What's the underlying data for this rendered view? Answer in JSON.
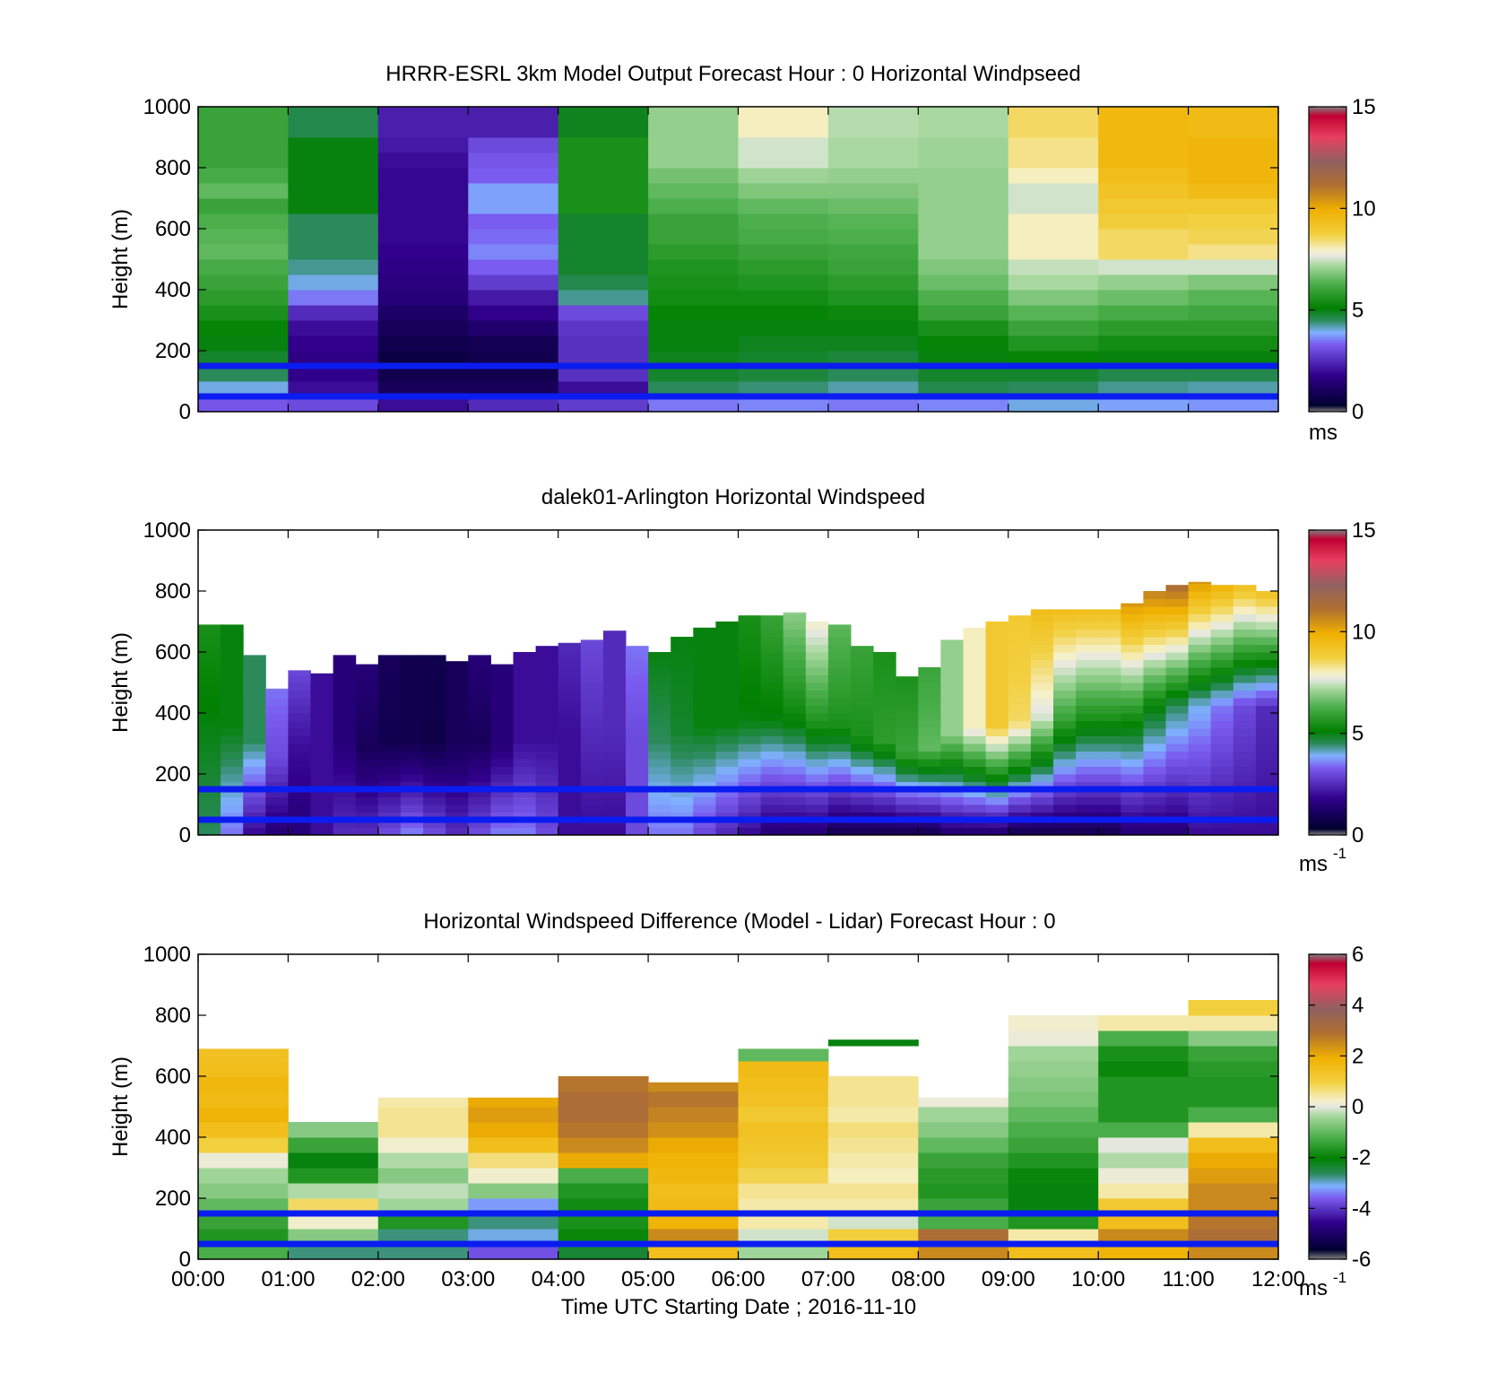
{
  "chart_data": [
    {
      "type": "heatmap",
      "title": "HRRR-ESRL 3km Model Output   Forecast Hour : 0 Horizontal Windpseed",
      "ylabel": "Height (m)",
      "xlabel": "",
      "ylim": [
        0,
        1000
      ],
      "yticks": [
        "0",
        "200",
        "400",
        "600",
        "800",
        "1000"
      ],
      "colorbar": {
        "ticks": [
          "0",
          "5",
          "10",
          "15"
        ],
        "range": [
          0,
          15
        ],
        "unit": "ms"
      },
      "x_ticks": [],
      "time_bins": [
        "00:00",
        "01:00",
        "02:00",
        "03:00",
        "04:00",
        "05:00",
        "06:00",
        "07:00",
        "08:00",
        "09:00",
        "10:00",
        "11:00"
      ],
      "reference_lines_m": [
        50,
        150
      ],
      "height_levels_m": [
        25,
        75,
        125,
        175,
        225,
        275,
        325,
        375,
        425,
        475,
        525,
        575,
        625,
        675,
        725,
        775,
        825,
        875,
        925,
        975
      ],
      "values": [
        [
          3.2,
          4.0,
          4.5,
          4.8,
          5.0,
          5.2,
          5.5,
          5.8,
          6.0,
          6.2,
          6.5,
          6.4,
          6.3,
          6.0,
          6.5,
          6.2,
          6.0,
          6.0,
          6.0,
          6.0
        ],
        [
          3.0,
          2.0,
          1.8,
          1.7,
          1.8,
          2.0,
          2.5,
          3.5,
          4.0,
          4.3,
          4.5,
          4.5,
          4.5,
          5.0,
          5.0,
          5.0,
          5.0,
          5.0,
          4.6,
          4.6
        ],
        [
          2.0,
          1.0,
          0.8,
          0.6,
          0.8,
          1.0,
          1.2,
          1.5,
          1.6,
          1.7,
          1.8,
          1.9,
          1.9,
          1.9,
          1.9,
          1.9,
          2.0,
          2.2,
          2.3,
          2.3
        ],
        [
          2.5,
          1.0,
          0.8,
          0.8,
          0.9,
          1.3,
          1.8,
          2.2,
          2.8,
          3.3,
          3.6,
          3.4,
          3.3,
          3.8,
          3.8,
          3.3,
          3.2,
          3.0,
          2.3,
          2.3
        ],
        [
          2.8,
          2.0,
          2.6,
          2.6,
          2.6,
          2.7,
          3.0,
          4.3,
          4.6,
          4.8,
          4.8,
          4.8,
          4.8,
          5.5,
          5.5,
          5.5,
          5.5,
          5.5,
          4.9,
          4.9
        ],
        [
          3.5,
          4.5,
          4.8,
          4.9,
          5.0,
          5.0,
          5.2,
          5.4,
          5.5,
          5.6,
          5.8,
          6.0,
          6.0,
          6.3,
          6.5,
          6.7,
          7.0,
          7.0,
          7.0,
          7.0
        ],
        [
          3.6,
          4.4,
          4.7,
          4.8,
          4.9,
          5.0,
          5.2,
          5.4,
          5.6,
          5.8,
          6.0,
          6.2,
          6.3,
          6.5,
          6.8,
          7.1,
          7.5,
          7.5,
          8.0,
          8.0
        ],
        [
          3.5,
          4.2,
          4.5,
          4.7,
          4.9,
          5.0,
          5.3,
          5.6,
          5.8,
          6.0,
          6.1,
          6.3,
          6.4,
          6.6,
          6.8,
          7.0,
          7.2,
          7.2,
          7.3,
          7.3
        ],
        [
          3.6,
          4.6,
          4.8,
          5.0,
          5.2,
          5.5,
          6.0,
          6.3,
          6.6,
          6.8,
          7.0,
          7.0,
          7.0,
          7.0,
          7.0,
          7.0,
          7.1,
          7.1,
          7.2,
          7.2
        ],
        [
          4.0,
          4.5,
          4.8,
          5.2,
          5.6,
          6.0,
          6.4,
          6.8,
          7.2,
          7.4,
          8.0,
          8.0,
          8.0,
          7.5,
          7.5,
          8.0,
          8.3,
          8.3,
          8.5,
          8.5
        ],
        [
          3.8,
          4.3,
          4.6,
          5.0,
          5.4,
          5.8,
          6.2,
          6.6,
          7.0,
          7.5,
          8.5,
          8.5,
          8.8,
          9.0,
          9.2,
          9.4,
          9.6,
          9.6,
          9.6,
          9.6
        ],
        [
          3.7,
          4.2,
          4.6,
          5.0,
          5.4,
          5.8,
          6.1,
          6.4,
          6.8,
          7.5,
          8.3,
          8.6,
          8.7,
          9.0,
          9.5,
          9.7,
          9.7,
          9.7,
          9.5,
          9.5
        ]
      ]
    },
    {
      "type": "heatmap",
      "title": "dalek01-Arlington  Horizontal Windspeed",
      "ylabel": "Height (m)",
      "xlabel": "",
      "ylim": [
        0,
        1000
      ],
      "yticks": [
        "0",
        "200",
        "400",
        "600",
        "800",
        "1000"
      ],
      "colorbar": {
        "ticks": [
          "0",
          "5",
          "10",
          "15"
        ],
        "range": [
          0,
          15
        ],
        "unit": "ms",
        "unit_superscript": "-1"
      },
      "x_ticks": [],
      "time_start": "00:00",
      "time_end": "12:00",
      "reference_lines_m": [
        50,
        150
      ],
      "profile_times_h": [
        0.0,
        0.25,
        0.5,
        0.75,
        1.0,
        1.25,
        1.5,
        1.75,
        2.0,
        2.25,
        2.5,
        2.75,
        3.0,
        3.25,
        3.5,
        3.75,
        4.0,
        4.25,
        4.5,
        4.75,
        5.0,
        5.25,
        5.5,
        5.75,
        6.0,
        6.25,
        6.5,
        6.75,
        7.0,
        7.25,
        7.5,
        7.75,
        8.0,
        8.25,
        8.5,
        8.75,
        9.0,
        9.25,
        9.5,
        9.75,
        10.0,
        10.25,
        10.5,
        10.75,
        11.0,
        11.25,
        11.5,
        11.75
      ],
      "profile_top_m": [
        690,
        690,
        590,
        480,
        540,
        530,
        590,
        560,
        590,
        590,
        590,
        570,
        590,
        560,
        600,
        620,
        630,
        640,
        670,
        620,
        600,
        650,
        680,
        700,
        720,
        720,
        730,
        700,
        690,
        620,
        600,
        520,
        550,
        640,
        680,
        700,
        720,
        740,
        740,
        740,
        740,
        760,
        800,
        820,
        830,
        820,
        820,
        800
      ],
      "profile_surface_mps": [
        4.5,
        3.5,
        2.0,
        1.5,
        1.5,
        2.0,
        2.5,
        2.5,
        3.0,
        3.5,
        3.0,
        2.5,
        3.0,
        3.5,
        3.5,
        3.0,
        2.0,
        2.0,
        2.0,
        3.0,
        3.5,
        3.5,
        3.0,
        2.5,
        2.0,
        1.5,
        1.5,
        1.5,
        1.0,
        1.0,
        1.0,
        1.0,
        1.0,
        1.5,
        1.5,
        1.5,
        1.0,
        1.0,
        1.0,
        1.0,
        1.0,
        1.5,
        1.5,
        1.5,
        2.0,
        2.0,
        2.0,
        2.0
      ],
      "profile_mid_mps": [
        5.0,
        5.0,
        4.5,
        3.0,
        2.0,
        2.0,
        1.5,
        1.0,
        0.8,
        0.8,
        0.7,
        1.0,
        1.0,
        1.5,
        2.0,
        2.0,
        2.0,
        2.5,
        2.5,
        3.0,
        4.5,
        4.8,
        5.0,
        5.0,
        5.0,
        5.0,
        5.2,
        5.5,
        5.5,
        5.5,
        5.8,
        6.0,
        6.5,
        7.0,
        8.0,
        9.0,
        8.5,
        7.5,
        6.0,
        5.5,
        5.5,
        5.5,
        5.0,
        4.5,
        4.0,
        3.5,
        3.0,
        2.5
      ],
      "profile_top_mps": [
        5.5,
        5.0,
        4.5,
        3.5,
        3.0,
        2.0,
        1.5,
        1.5,
        1.0,
        0.8,
        0.8,
        1.0,
        1.5,
        1.5,
        2.0,
        2.0,
        2.5,
        3.0,
        2.5,
        3.5,
        5.0,
        5.0,
        5.0,
        5.0,
        5.5,
        6.0,
        7.0,
        8.0,
        6.5,
        6.0,
        5.5,
        5.5,
        6.0,
        7.0,
        8.0,
        9.0,
        9.0,
        9.5,
        9.5,
        9.5,
        9.5,
        10.5,
        11.0,
        11.5,
        10.5,
        10.0,
        9.5,
        9.5
      ]
    },
    {
      "type": "heatmap",
      "title": "Horizontal Windspeed Difference (Model - Lidar) Forecast Hour : 0",
      "xlabel": "Time UTC  Starting Date ; 2016-11-10",
      "ylabel": "Height (m)",
      "ylim": [
        0,
        1000
      ],
      "yticks": [
        "0",
        "200",
        "400",
        "600",
        "800",
        "1000"
      ],
      "x_ticks": [
        "00:00",
        "01:00",
        "02:00",
        "03:00",
        "04:00",
        "05:00",
        "06:00",
        "07:00",
        "08:00",
        "09:00",
        "10:00",
        "11:00",
        "12:00"
      ],
      "colorbar": {
        "ticks": [
          "-6",
          "-4",
          "-2",
          "0",
          "2",
          "4",
          "6"
        ],
        "range": [
          -6,
          6
        ],
        "unit": "ms",
        "unit_superscript": "-1"
      },
      "reference_lines_m": [
        50,
        150
      ],
      "column_top_m": [
        690,
        480,
        530,
        530,
        600,
        580,
        690,
        720,
        530,
        800,
        800,
        870
      ],
      "height_levels_m": [
        25,
        75,
        125,
        175,
        225,
        275,
        325,
        375,
        425,
        475,
        525,
        575,
        625,
        675,
        725,
        775,
        825
      ],
      "values": [
        [
          -1.0,
          -1.5,
          -1.2,
          -0.8,
          -0.5,
          -0.3,
          0.2,
          1.0,
          1.5,
          1.8,
          1.6,
          1.7,
          1.5,
          1.4,
          null,
          null,
          null
        ],
        [
          -2.5,
          -0.5,
          0.3,
          0.8,
          -0.2,
          -1.5,
          -2.0,
          -1.2,
          -0.5,
          null,
          null,
          null,
          null,
          null,
          null,
          null,
          null
        ],
        [
          -2.5,
          -2.5,
          -1.5,
          -0.3,
          -0.1,
          -0.5,
          -0.2,
          0.3,
          0.6,
          0.6,
          0.5,
          null,
          null,
          null,
          null,
          null,
          null
        ],
        [
          -3.5,
          -2.8,
          -2.5,
          -3.0,
          -0.5,
          0.3,
          0.7,
          1.5,
          2.0,
          2.2,
          2.0,
          null,
          null,
          null,
          null,
          null,
          null
        ],
        [
          -2.2,
          -1.8,
          -1.6,
          -1.7,
          -1.5,
          -1.0,
          2.0,
          2.5,
          2.8,
          3.0,
          3.0,
          2.8,
          null,
          null,
          null,
          null,
          null
        ],
        [
          1.5,
          2.5,
          1.8,
          1.6,
          1.5,
          1.7,
          1.8,
          2.0,
          2.4,
          2.6,
          2.8,
          2.5,
          null,
          null,
          null,
          null,
          null
        ],
        [
          -0.3,
          0.0,
          0.5,
          0.5,
          0.6,
          0.9,
          1.2,
          1.3,
          1.4,
          1.2,
          1.4,
          1.5,
          1.6,
          -0.8,
          null,
          null,
          null
        ],
        [
          1.5,
          1.0,
          0.0,
          0.5,
          0.6,
          0.4,
          0.5,
          0.6,
          0.7,
          0.5,
          0.6,
          0.6,
          null,
          null,
          -2.0,
          null,
          null
        ],
        [
          2.5,
          3.0,
          -1.0,
          -1.2,
          -1.5,
          -1.4,
          -1.2,
          -0.8,
          -0.5,
          -0.3,
          0.2,
          null,
          null,
          null,
          null,
          null,
          null
        ],
        [
          1.5,
          0.5,
          -1.5,
          -2.0,
          -2.0,
          -1.8,
          -1.5,
          -1.2,
          -1.0,
          -0.8,
          -0.6,
          -0.5,
          -0.4,
          -0.3,
          0.2,
          0.3,
          null
        ],
        [
          1.8,
          2.5,
          1.5,
          1.2,
          0.5,
          0.2,
          -0.2,
          0.1,
          -1.0,
          -1.5,
          -1.5,
          -1.5,
          -1.8,
          -1.6,
          -1.0,
          0.5,
          null
        ],
        [
          2.5,
          3.0,
          2.8,
          2.5,
          2.5,
          2.2,
          2.0,
          1.5,
          0.5,
          -1.0,
          -1.5,
          -1.5,
          -1.4,
          -1.2,
          -0.5,
          0.5,
          1.0
        ]
      ]
    }
  ]
}
